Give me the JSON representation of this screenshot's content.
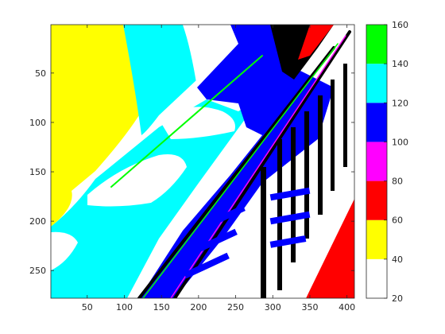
{
  "chart_data": {
    "type": "heatmap",
    "title": "",
    "xlabel": "",
    "ylabel": "",
    "x_range": [
      1,
      410
    ],
    "y_range": [
      1,
      278
    ],
    "y_reversed": true,
    "x_ticks": [
      "50",
      "100",
      "150",
      "200",
      "250",
      "300",
      "350",
      "400"
    ],
    "y_ticks": [
      "50",
      "100",
      "150",
      "200",
      "250"
    ],
    "colorbar": {
      "range": [
        20,
        160
      ],
      "ticks": [
        "20",
        "40",
        "60",
        "80",
        "100",
        "120",
        "140",
        "160"
      ],
      "bins": [
        {
          "from": 20,
          "to": 40,
          "color": "#ffffff"
        },
        {
          "from": 40,
          "to": 60,
          "color": "#ffff00"
        },
        {
          "from": 60,
          "to": 80,
          "color": "#ff0000"
        },
        {
          "from": 80,
          "to": 100,
          "color": "#ff00ff"
        },
        {
          "from": 100,
          "to": 120,
          "color": "#0000ff"
        },
        {
          "from": 120,
          "to": 140,
          "color": "#00ffff"
        },
        {
          "from": 140,
          "to": 160,
          "color": "#00ff00"
        },
        {
          "from": 160,
          "to": 180,
          "color": "#000000"
        }
      ]
    },
    "regions": [
      {
        "name": "left-field",
        "value_range": [
          40,
          60
        ]
      },
      {
        "name": "upper-middle-field",
        "value_range": [
          120,
          140
        ]
      },
      {
        "name": "lower-left-field",
        "value_range": [
          120,
          140
        ]
      },
      {
        "name": "open-areas",
        "value_range": [
          20,
          40
        ]
      },
      {
        "name": "diagonal-band",
        "value_range": [
          100,
          120
        ]
      },
      {
        "name": "top-right-corner",
        "value_range": [
          140,
          160
        ]
      },
      {
        "name": "right-edge-wedge",
        "value_range": [
          60,
          80
        ]
      }
    ]
  }
}
